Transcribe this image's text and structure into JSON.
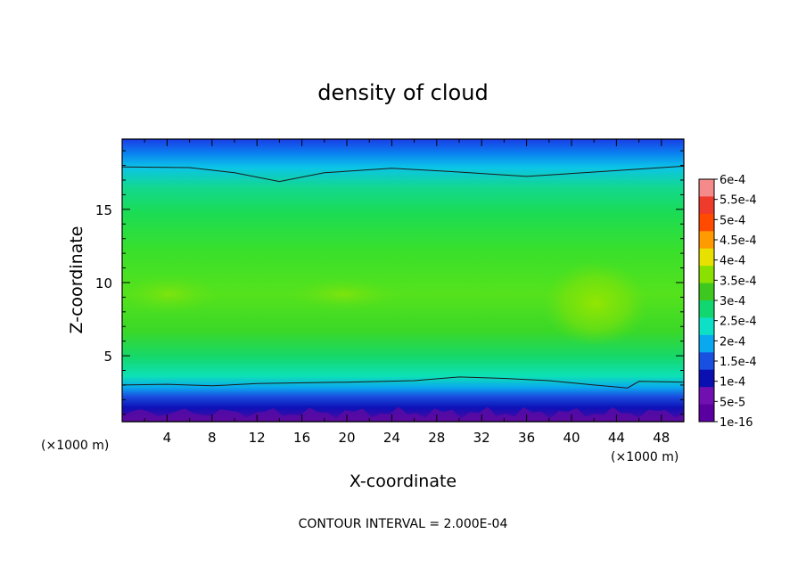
{
  "chart_data": {
    "type": "heatmap",
    "title": "density of cloud",
    "xlabel": "X-coordinate",
    "ylabel": "Z-coordinate",
    "x_unit": "(×1000 m)",
    "y_unit": "(×1000 m)",
    "xlim": [
      0,
      50
    ],
    "ylim": [
      0.5,
      19.8
    ],
    "x_ticks": [
      4,
      8,
      12,
      16,
      20,
      24,
      28,
      32,
      36,
      40,
      44,
      48
    ],
    "y_ticks": [
      5,
      10,
      15
    ],
    "footer": "CONTOUR INTERVAL = 2.000E-04",
    "colorbar": {
      "labels": [
        "6e-4",
        "5.5e-4",
        "5e-4",
        "4.5e-4",
        "4e-4",
        "3.5e-4",
        "3e-4",
        "2.5e-4",
        "2e-4",
        "1.5e-4",
        "1e-4",
        "5e-5",
        "1e-16"
      ],
      "colors": [
        "#f48a8a",
        "#ee3b2b",
        "#ff4a00",
        "#ff9a00",
        "#e8e000",
        "#8ae000",
        "#3ec81f",
        "#12d670",
        "#0ee0c8",
        "#0aa8ee",
        "#1a50e0",
        "#0a10b0",
        "#7010b0",
        "#5a00a0"
      ]
    },
    "contour_lines": [
      {
        "level": "2.000E-04",
        "z_top_boundary": [
          [
            0,
            17.9
          ],
          [
            6,
            17.85
          ],
          [
            10,
            17.5
          ],
          [
            14,
            16.9
          ],
          [
            18,
            17.5
          ],
          [
            24,
            17.8
          ],
          [
            30,
            17.55
          ],
          [
            36,
            17.25
          ],
          [
            42,
            17.55
          ],
          [
            50,
            17.95
          ]
        ]
      },
      {
        "level": "2.000E-04",
        "z_bottom_boundary": [
          [
            0,
            3.0
          ],
          [
            4,
            3.05
          ],
          [
            8,
            2.95
          ],
          [
            12,
            3.1
          ],
          [
            20,
            3.2
          ],
          [
            26,
            3.3
          ],
          [
            30,
            3.55
          ],
          [
            34,
            3.45
          ],
          [
            38,
            3.3
          ],
          [
            42,
            3.0
          ],
          [
            45,
            2.8
          ],
          [
            46,
            3.25
          ],
          [
            50,
            3.2
          ]
        ]
      }
    ],
    "density_profile_by_z": [
      {
        "z": 19.8,
        "value": "1e-4"
      },
      {
        "z": 19.0,
        "value": "1.5e-4"
      },
      {
        "z": 18.0,
        "value": "2e-4"
      },
      {
        "z": 16.5,
        "value": "2.5e-4"
      },
      {
        "z": 13.5,
        "value": "3e-4"
      },
      {
        "z": 9.0,
        "value": "3.5e-4"
      },
      {
        "z": 5.5,
        "value": "3e-4"
      },
      {
        "z": 4.0,
        "value": "2.5e-4"
      },
      {
        "z": 3.0,
        "value": "2e-4"
      },
      {
        "z": 2.2,
        "value": "1.5e-4"
      },
      {
        "z": 1.6,
        "value": "1e-4"
      },
      {
        "z": 1.0,
        "value": "5e-5"
      },
      {
        "z": 0.6,
        "value": "1e-16"
      }
    ],
    "local_maxima": [
      {
        "x": 42,
        "z": 8.0,
        "value": "4e-4"
      },
      {
        "x": 21,
        "z": 9.0,
        "value": "3.5e-4"
      },
      {
        "x": 5,
        "z": 9.0,
        "value": "3.5e-4"
      }
    ]
  }
}
